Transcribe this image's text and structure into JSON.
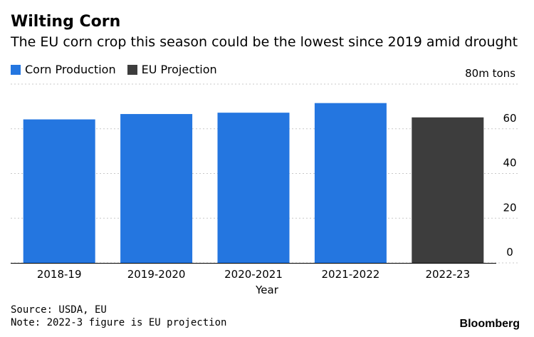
{
  "title": "Wilting Corn",
  "subtitle": "The EU corn crop this season could be the lowest since 2019 amid drought",
  "legend": [
    {
      "label": "Corn Production",
      "color": "#2476e0"
    },
    {
      "label": "EU Projection",
      "color": "#3d3d3d"
    }
  ],
  "source": "Source: USDA, EU",
  "note": "Note: 2022-3 figure is EU projection",
  "brand": "Bloomberg",
  "chart_data": {
    "type": "bar",
    "categories": [
      "2018-19",
      "2019-2020",
      "2020-2021",
      "2021-2022",
      "2022-23"
    ],
    "series": [
      {
        "name": "Corn Production",
        "values": [
          64.2,
          66.6,
          67.2,
          71.5,
          null
        ],
        "color": "#2476e0"
      },
      {
        "name": "EU Projection",
        "values": [
          null,
          null,
          null,
          null,
          65.1
        ],
        "color": "#3d3d3d"
      }
    ],
    "xlabel": "Year",
    "ylabel": "80m tons",
    "ylim": [
      0,
      80
    ],
    "yticks": [
      0,
      20,
      40,
      60
    ],
    "grid": true,
    "legend_position": "top-left"
  }
}
